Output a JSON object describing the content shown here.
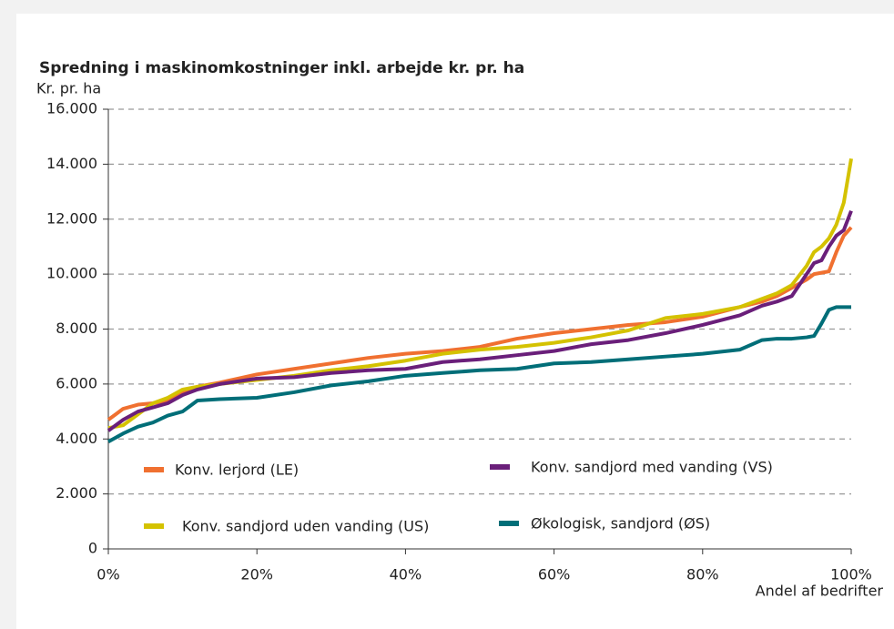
{
  "chart_data": {
    "type": "line",
    "title": "Spredning i maskinomkostninger inkl. arbejde kr. pr. ha",
    "y_label": "Kr. pr. ha",
    "x_label": "Andel af bedrifter",
    "x": [
      0,
      2,
      4,
      6,
      8,
      10,
      12,
      15,
      20,
      25,
      30,
      35,
      40,
      45,
      50,
      55,
      60,
      65,
      70,
      75,
      80,
      85,
      88,
      90,
      92,
      94,
      95,
      96,
      97,
      98,
      99,
      100
    ],
    "series": [
      {
        "name": "Konv. lerjord (LE)",
        "color": "#f07030",
        "values": [
          4700,
          5100,
          5250,
          5300,
          5400,
          5700,
          5900,
          6050,
          6350,
          6550,
          6750,
          6950,
          7100,
          7200,
          7350,
          7650,
          7850,
          8000,
          8150,
          8250,
          8450,
          8800,
          9000,
          9200,
          9500,
          9800,
          10000,
          10050,
          10100,
          10800,
          11400,
          11700
        ]
      },
      {
        "name": "Konv. sandjord med vanding (VS)",
        "color": "#6a1f7a",
        "values": [
          4300,
          4700,
          5000,
          5150,
          5300,
          5600,
          5800,
          6000,
          6200,
          6250,
          6400,
          6500,
          6550,
          6800,
          6900,
          7050,
          7200,
          7450,
          7600,
          7850,
          8150,
          8500,
          8850,
          9000,
          9200,
          10000,
          10400,
          10500,
          11000,
          11400,
          11600,
          12300
        ]
      },
      {
        "name": "Konv. sandjord uden vanding (US)",
        "color": "#d4c200",
        "values": [
          4400,
          4500,
          4900,
          5300,
          5500,
          5800,
          5900,
          6000,
          6150,
          6300,
          6500,
          6650,
          6850,
          7100,
          7250,
          7350,
          7500,
          7700,
          7950,
          8400,
          8550,
          8800,
          9100,
          9300,
          9600,
          10300,
          10800,
          11000,
          11300,
          11800,
          12600,
          14200
        ]
      },
      {
        "name": "Økologisk, sandjord (ØS)",
        "color": "#006e78",
        "values": [
          3900,
          4200,
          4450,
          4600,
          4850,
          5000,
          5400,
          5450,
          5500,
          5700,
          5950,
          6100,
          6300,
          6400,
          6500,
          6550,
          6750,
          6800,
          6900,
          7000,
          7100,
          7250,
          7600,
          7650,
          7650,
          7700,
          7750,
          8200,
          8700,
          8800,
          8800,
          8800
        ]
      }
    ],
    "xlim": [
      0,
      100
    ],
    "xticks": [
      {
        "value": 0,
        "label": "0%"
      },
      {
        "value": 20,
        "label": "20%"
      },
      {
        "value": 40,
        "label": "40%"
      },
      {
        "value": 60,
        "label": "60%"
      },
      {
        "value": 80,
        "label": "80%"
      },
      {
        "value": 100,
        "label": "100%"
      }
    ],
    "ylim": [
      0,
      16000
    ],
    "yticks": [
      0,
      {
        "value": 2000,
        "label": "2.000"
      },
      {
        "value": 4000,
        "label": "4.000"
      },
      {
        "value": 6000,
        "label": "6.000"
      },
      {
        "value": 8000,
        "label": "8.000"
      },
      {
        "value": 10000,
        "label": "10.000"
      },
      {
        "value": 12000,
        "label": "12.000"
      },
      {
        "value": 14000,
        "label": "14.000"
      },
      {
        "value": 16000,
        "label": "16.000"
      }
    ],
    "grid": true
  }
}
